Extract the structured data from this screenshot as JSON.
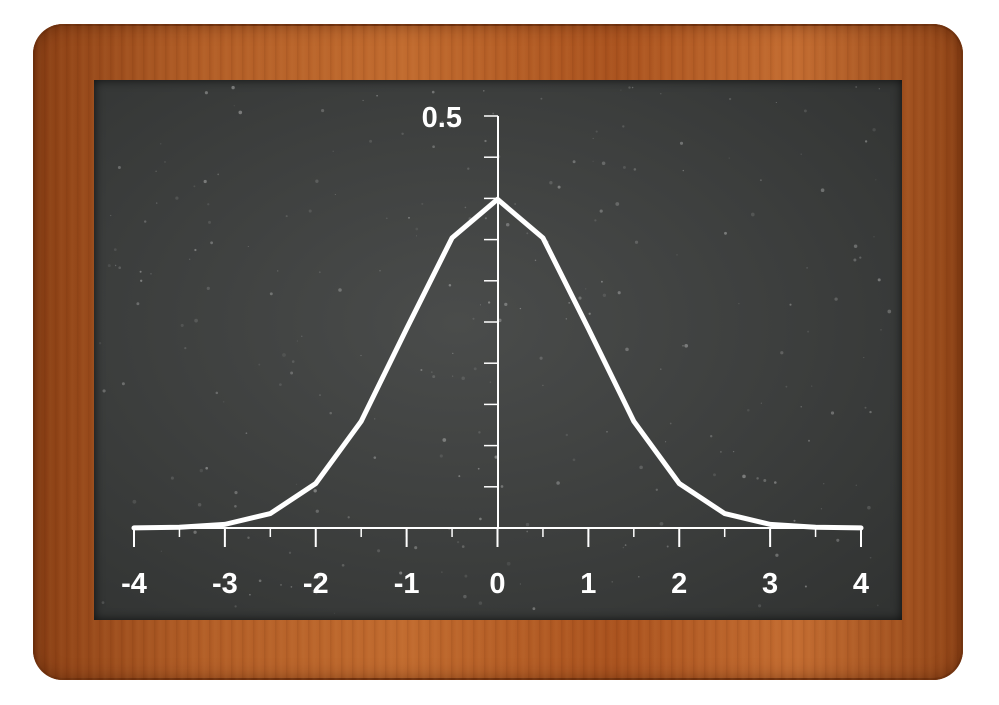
{
  "chart_data": {
    "type": "line",
    "title": "",
    "xlabel": "",
    "ylabel": "",
    "xlim": [
      -4,
      4
    ],
    "ylim": [
      0,
      0.5
    ],
    "x_ticks": [
      "-4",
      "-3",
      "-2",
      "-1",
      "0",
      "1",
      "2",
      "3",
      "4"
    ],
    "y_tick_labels": [
      "0.5"
    ],
    "series": [
      {
        "x": [
          -4,
          -3.5,
          -3,
          -2.5,
          -2,
          -1.5,
          -1,
          -0.5,
          0,
          0.5,
          1,
          1.5,
          2,
          2.5,
          3,
          3.5,
          4
        ],
        "y": [
          0.0001,
          0.0009,
          0.0044,
          0.0175,
          0.054,
          0.1295,
          0.242,
          0.3521,
          0.3989,
          0.3521,
          0.242,
          0.1295,
          0.054,
          0.0175,
          0.0044,
          0.0009,
          0.0001
        ]
      }
    ],
    "grid": false,
    "colors": {
      "background": "#3f4140",
      "ink": "#ffffff",
      "frame": "#b35f28"
    }
  }
}
